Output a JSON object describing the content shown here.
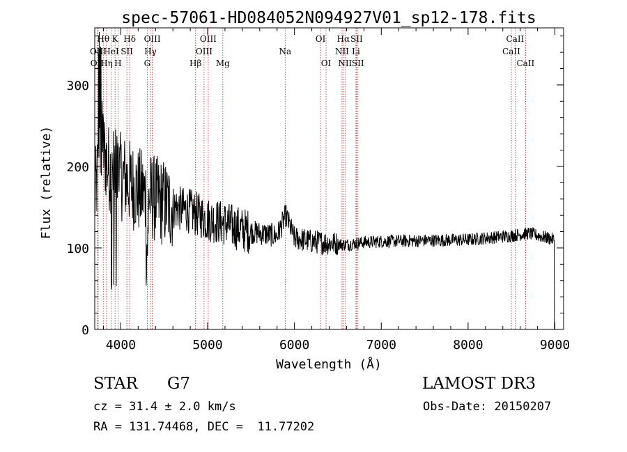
{
  "chart_data": {
    "type": "line",
    "title": "spec-57061-HD084052N094927V01_sp12-178.fits",
    "xlabel": "Wavelength (Å)",
    "ylabel": "Flux (relative)",
    "xlim": [
      3700,
      9100
    ],
    "ylim": [
      0,
      370
    ],
    "x_ticks": [
      4000,
      5000,
      6000,
      7000,
      8000,
      9000
    ],
    "y_ticks": [
      0,
      100,
      200,
      300
    ],
    "continuum_points": [
      [
        3700,
        160
      ],
      [
        3780,
        230
      ],
      [
        3850,
        200
      ],
      [
        3950,
        190
      ],
      [
        4050,
        185
      ],
      [
        4200,
        170
      ],
      [
        4400,
        160
      ],
      [
        4600,
        150
      ],
      [
        4800,
        145
      ],
      [
        5000,
        135
      ],
      [
        5200,
        130
      ],
      [
        5400,
        122
      ],
      [
        5600,
        118
      ],
      [
        5800,
        115
      ],
      [
        5900,
        140
      ],
      [
        6000,
        112
      ],
      [
        6200,
        108
      ],
      [
        6400,
        106
      ],
      [
        6600,
        104
      ],
      [
        6800,
        107
      ],
      [
        7000,
        108
      ],
      [
        7500,
        109
      ],
      [
        8000,
        110
      ],
      [
        8500,
        115
      ],
      [
        8700,
        118
      ],
      [
        9000,
        110
      ]
    ],
    "lines": [
      {
        "label": "OII",
        "wavelength": 3727,
        "row": 2
      },
      {
        "label": "Hθ",
        "wavelength": 3798,
        "row": 0
      },
      {
        "label": "OIII",
        "wavelength": 3740,
        "row": 1
      },
      {
        "label": "Hη",
        "wavelength": 3836,
        "row": 2
      },
      {
        "label": "HeI",
        "wavelength": 3889,
        "row": 1
      },
      {
        "label": "K",
        "wavelength": 3934,
        "row": 0
      },
      {
        "label": "H",
        "wavelength": 3968,
        "row": 2
      },
      {
        "label": "SII",
        "wavelength": 4070,
        "row": 1
      },
      {
        "label": "Hδ",
        "wavelength": 4102,
        "row": 0
      },
      {
        "label": "G",
        "wavelength": 4305,
        "row": 2
      },
      {
        "label": "Hγ",
        "wavelength": 4341,
        "row": 1
      },
      {
        "label": "OIII",
        "wavelength": 4363,
        "row": 0
      },
      {
        "label": "Hβ",
        "wavelength": 4861,
        "row": 2
      },
      {
        "label": "OIII",
        "wavelength": 4959,
        "row": 1
      },
      {
        "label": "OIII",
        "wavelength": 5007,
        "row": 0
      },
      {
        "label": "Mg",
        "wavelength": 5175,
        "row": 2
      },
      {
        "label": "Na",
        "wavelength": 5893,
        "row": 1
      },
      {
        "label": "OI",
        "wavelength": 6300,
        "row": 0
      },
      {
        "label": "OI",
        "wavelength": 6364,
        "row": 2
      },
      {
        "label": "NII",
        "wavelength": 6548,
        "row": 1
      },
      {
        "label": "Hα",
        "wavelength": 6563,
        "row": 0
      },
      {
        "label": "NII",
        "wavelength": 6583,
        "row": 2
      },
      {
        "label": "Li",
        "wavelength": 6708,
        "row": 1
      },
      {
        "label": "SII",
        "wavelength": 6716,
        "row": 0
      },
      {
        "label": "SII",
        "wavelength": 6731,
        "row": 2
      },
      {
        "label": "CaII",
        "wavelength": 8498,
        "row": 1
      },
      {
        "label": "CaII",
        "wavelength": 8542,
        "row": 0
      },
      {
        "label": "CaII",
        "wavelength": 8662,
        "row": 2
      }
    ]
  },
  "info": {
    "object_class": "STAR",
    "subclass": "G7",
    "survey": "LAMOST DR3",
    "redshift": "cz = 31.4 ± 2.0 km/s",
    "obs_date": "Obs-Date: 20150207",
    "coords": "RA = 131.74468, DEC =  11.77202"
  }
}
